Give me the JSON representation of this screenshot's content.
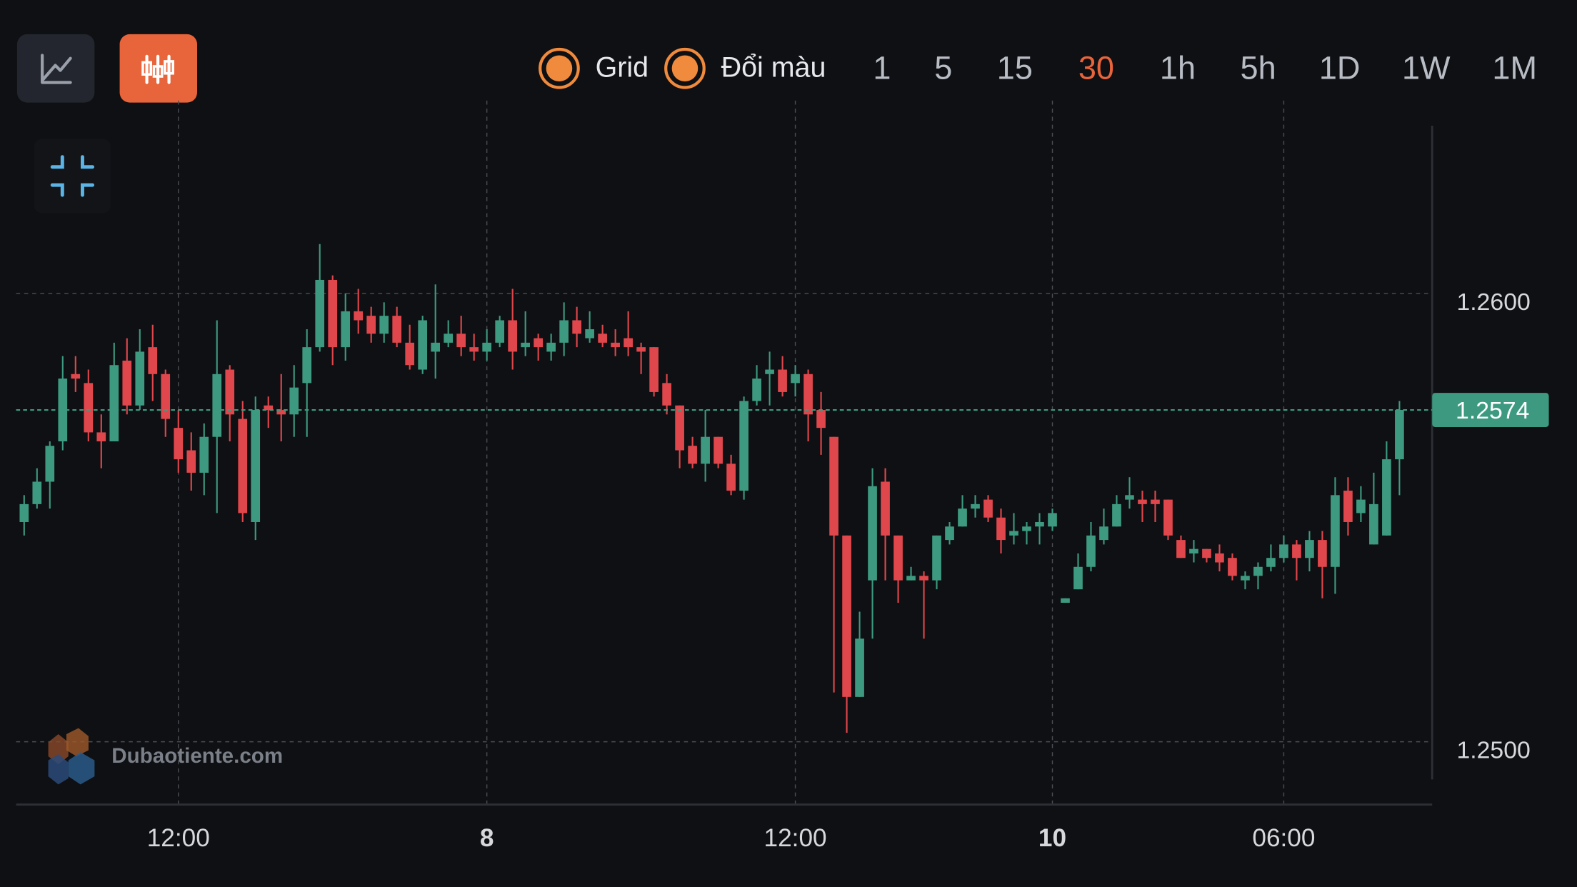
{
  "toolbar": {
    "toggles": [
      "Grid",
      "Đổi màu"
    ],
    "intervals": [
      "1",
      "5",
      "15",
      "30",
      "1h",
      "5h",
      "1D",
      "1W",
      "1M"
    ],
    "active_interval_index": 3
  },
  "watermark": "Dubaotiente.com",
  "chart_data": {
    "type": "candlestick",
    "categories": [
      null,
      null,
      null,
      null,
      null,
      null,
      null,
      null,
      null,
      null,
      null,
      null,
      "12:00",
      null,
      null,
      null,
      null,
      null,
      null,
      null,
      null,
      null,
      null,
      null,
      null,
      null,
      null,
      null,
      null,
      null,
      null,
      null,
      null,
      null,
      null,
      null,
      "8",
      null,
      null,
      null,
      null,
      null,
      null,
      null,
      null,
      null,
      null,
      null,
      null,
      null,
      null,
      null,
      null,
      null,
      null,
      null,
      null,
      null,
      null,
      null,
      "12:00",
      null,
      null,
      null,
      null,
      null,
      null,
      null,
      null,
      null,
      null,
      null,
      null,
      null,
      null,
      null,
      null,
      null,
      null,
      null,
      "10",
      null,
      null,
      null,
      null,
      null,
      null,
      null,
      null,
      null,
      null,
      null,
      null,
      null,
      null,
      null,
      null,
      null,
      "06:00",
      null,
      null,
      null,
      null,
      null,
      null,
      null,
      null,
      null
    ],
    "open": [
      1.2549,
      1.2553,
      1.2558,
      1.2567,
      1.2582,
      1.258,
      1.2569,
      1.2567,
      1.2585,
      1.2575,
      1.2588,
      1.2582,
      1.257,
      1.2565,
      1.256,
      1.2568,
      1.2583,
      1.2572,
      1.2549,
      1.2575,
      1.2574,
      1.2573,
      1.258,
      1.2588,
      1.2603,
      1.2588,
      1.2596,
      1.2595,
      1.2591,
      1.2595,
      1.2589,
      1.2583,
      1.2587,
      1.2589,
      1.2591,
      1.2588,
      1.2587,
      1.2589,
      1.2594,
      1.2588,
      1.259,
      1.2587,
      1.2589,
      1.2594,
      1.259,
      1.2591,
      1.2589,
      1.259,
      1.2588,
      1.2588,
      1.258,
      1.2575,
      1.2566,
      1.2562,
      1.2568,
      1.2562,
      1.2556,
      1.2576,
      1.2582,
      1.2583,
      1.258,
      1.2582,
      1.2574,
      1.2568,
      1.2546,
      1.251,
      1.2536,
      1.2558,
      1.2546,
      1.2536,
      1.2537,
      1.2536,
      1.2545,
      1.2548,
      1.2552,
      1.2554,
      1.255,
      1.2546,
      1.2547,
      1.2548,
      1.2548,
      1.2531,
      1.2534,
      1.2539,
      1.2545,
      1.2548,
      1.2554,
      1.2554,
      1.2554,
      1.2554,
      1.2545,
      1.2542,
      1.2543,
      1.2542,
      1.2541,
      1.2536,
      1.2537,
      1.2539,
      1.2541,
      1.2544,
      1.2541,
      1.2545,
      1.2539,
      1.2556,
      1.2551,
      1.2544,
      1.2546,
      1.2563
    ],
    "high": [
      1.2555,
      1.2561,
      1.2567,
      1.2586,
      1.2586,
      1.2583,
      1.2573,
      1.2589,
      1.259,
      1.2592,
      1.2593,
      1.2583,
      1.2574,
      1.2569,
      1.2571,
      1.2594,
      1.2584,
      1.2576,
      1.2577,
      1.2577,
      1.2582,
      1.2584,
      1.2592,
      1.2611,
      1.2604,
      1.26,
      1.2601,
      1.2597,
      1.2598,
      1.2597,
      1.2593,
      1.2595,
      1.2602,
      1.2594,
      1.2595,
      1.2591,
      1.2592,
      1.2595,
      1.2601,
      1.2596,
      1.2591,
      1.2591,
      1.2598,
      1.2597,
      1.2596,
      1.2593,
      1.2592,
      1.2596,
      1.2589,
      1.2588,
      1.2582,
      1.2575,
      1.2568,
      1.2574,
      1.2568,
      1.2564,
      1.2577,
      1.2584,
      1.2587,
      1.2586,
      1.2584,
      1.2583,
      1.2578,
      1.2568,
      1.2546,
      1.2529,
      1.2561,
      1.2561,
      1.2546,
      1.2539,
      1.2538,
      1.2546,
      1.2549,
      1.2555,
      1.2555,
      1.2555,
      1.2552,
      1.2551,
      1.2549,
      1.2551,
      1.2552,
      1.2532,
      1.2542,
      1.2549,
      1.2552,
      1.2555,
      1.2559,
      1.2556,
      1.2556,
      1.2554,
      1.2546,
      1.2545,
      1.2543,
      1.2544,
      1.2542,
      1.2538,
      1.254,
      1.2544,
      1.2546,
      1.2545,
      1.2547,
      1.2547,
      1.2559,
      1.2559,
      1.2557,
      1.256,
      1.2567,
      1.2576
    ],
    "low": [
      1.2546,
      1.2552,
      1.2552,
      1.2565,
      1.2578,
      1.2567,
      1.2561,
      1.2567,
      1.2573,
      1.2574,
      1.2576,
      1.2568,
      1.256,
      1.2556,
      1.2555,
      1.2551,
      1.2567,
      1.2549,
      1.2545,
      1.257,
      1.2567,
      1.2568,
      1.2568,
      1.2587,
      1.2584,
      1.2585,
      1.2591,
      1.2589,
      1.2589,
      1.2588,
      1.2583,
      1.2582,
      1.2581,
      1.2588,
      1.2586,
      1.2585,
      1.2585,
      1.2588,
      1.2583,
      1.2586,
      1.2585,
      1.2585,
      1.2586,
      1.2588,
      1.2589,
      1.2588,
      1.2586,
      1.2586,
      1.2582,
      1.2577,
      1.2573,
      1.2561,
      1.2561,
      1.2558,
      1.2561,
      1.2555,
      1.2554,
      1.2575,
      1.2575,
      1.2577,
      1.2577,
      1.2567,
      1.2564,
      1.2511,
      1.2502,
      1.251,
      1.2523,
      1.2536,
      1.2531,
      1.2536,
      1.2523,
      1.2534,
      1.2544,
      1.2548,
      1.255,
      1.2549,
      1.2542,
      1.2544,
      1.2544,
      1.2544,
      1.2547,
      1.2531,
      1.2534,
      1.2538,
      1.2544,
      1.2548,
      1.2552,
      1.2549,
      1.2549,
      1.2545,
      1.2541,
      1.254,
      1.254,
      1.2538,
      1.2536,
      1.2534,
      1.2534,
      1.2538,
      1.254,
      1.2536,
      1.2538,
      1.2532,
      1.2533,
      1.2546,
      1.2549,
      1.2544,
      1.2546,
      1.2555
    ],
    "close": [
      1.2553,
      1.2558,
      1.2566,
      1.2581,
      1.2581,
      1.2569,
      1.2567,
      1.2584,
      1.2575,
      1.2587,
      1.2582,
      1.2572,
      1.2563,
      1.256,
      1.2568,
      1.2582,
      1.2573,
      1.2551,
      1.2574,
      1.2574,
      1.2573,
      1.2579,
      1.2588,
      1.2603,
      1.2588,
      1.2596,
      1.2594,
      1.2591,
      1.2595,
      1.2589,
      1.2584,
      1.2594,
      1.2589,
      1.2591,
      1.2588,
      1.2587,
      1.2589,
      1.2594,
      1.2587,
      1.2589,
      1.2588,
      1.2589,
      1.2594,
      1.2591,
      1.2592,
      1.2589,
      1.2588,
      1.2588,
      1.2587,
      1.2578,
      1.2575,
      1.2565,
      1.2562,
      1.2568,
      1.2562,
      1.2556,
      1.2576,
      1.2581,
      1.2583,
      1.2578,
      1.2582,
      1.2573,
      1.257,
      1.2546,
      1.251,
      1.2523,
      1.2557,
      1.2546,
      1.2536,
      1.2537,
      1.2536,
      1.2546,
      1.2548,
      1.2552,
      1.2553,
      1.255,
      1.2545,
      1.2547,
      1.2548,
      1.2549,
      1.2551,
      1.2532,
      1.2539,
      1.2546,
      1.2548,
      1.2553,
      1.2555,
      1.2553,
      1.2553,
      1.2546,
      1.2541,
      1.2543,
      1.2541,
      1.254,
      1.2537,
      1.2537,
      1.2539,
      1.2541,
      1.2544,
      1.2541,
      1.2545,
      1.2539,
      1.2555,
      1.2549,
      1.2554,
      1.2553,
      1.2563,
      1.2574
    ],
    "up_color": "#3d9a80",
    "down_color": "#e0474c",
    "ylim": [
      1.2486,
      1.2643
    ],
    "yticks": [
      {
        "value": 1.26,
        "label": "1.2600"
      },
      {
        "value": 1.25,
        "label": "1.2500"
      }
    ],
    "last_price": {
      "value": 1.2574,
      "label": "1.2574"
    },
    "grid": true
  }
}
